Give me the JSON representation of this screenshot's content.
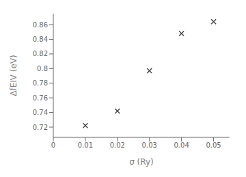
{
  "chart_data": {
    "type": "scatter",
    "x": [
      0.01,
      0.02,
      0.03,
      0.04,
      0.05
    ],
    "y": [
      0.722,
      0.742,
      0.797,
      0.848,
      0.864
    ],
    "xlabel": "σ  (Ry)",
    "ylabel": "ΔfEIV (eV)",
    "xlim": [
      0,
      0.055
    ],
    "ylim": [
      0.706,
      0.875
    ],
    "xticks": [
      0,
      0.01,
      0.02,
      0.03,
      0.04,
      0.05
    ],
    "yticks": [
      0.72,
      0.74,
      0.76,
      0.78,
      0.8,
      0.82,
      0.84,
      0.86
    ],
    "marker": "x",
    "color": "#444444",
    "grid": false
  }
}
